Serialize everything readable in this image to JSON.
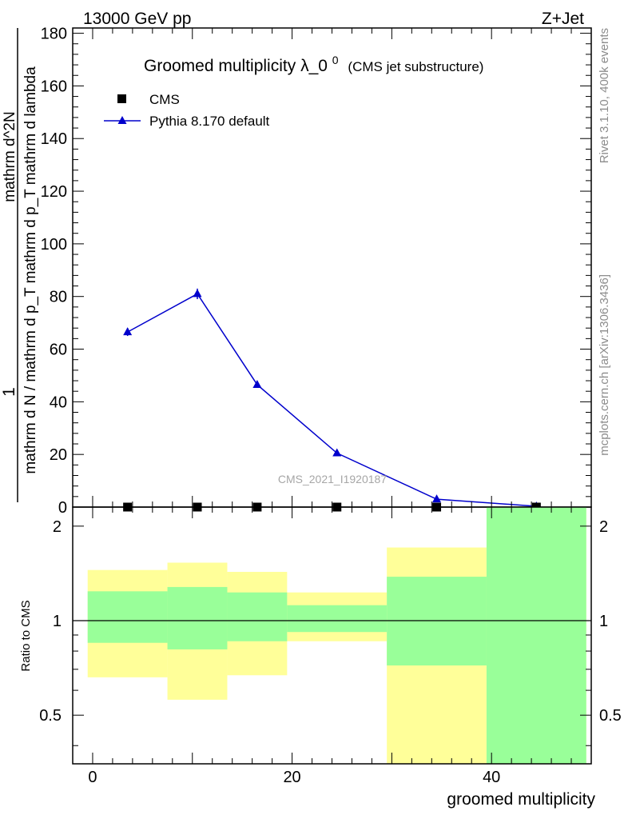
{
  "header": {
    "left": "13000 GeV pp",
    "right": "Z+Jet"
  },
  "side_labels": {
    "top": "Rivet 3.1.10,  400k events",
    "bottom": "mcplots.cern.ch [arXiv:1306.3436]"
  },
  "watermark": "CMS_2021_I1920187",
  "colors": {
    "mc": "#0000cc",
    "band_inner": "#99ff99",
    "band_outer": "#ffff99"
  },
  "chart_data": [
    {
      "type": "line",
      "title": "Groomed multiplicity",
      "title_symbol": "λ_0",
      "title_superscript": "0",
      "subtitle": "(CMS jet substructure)",
      "ylabel_numerator": "1",
      "ylabel_denominator": "mathrm d N / mathrm d p_T mathrm d p_T mathrm d lambda",
      "ylabel_top": "mathrm d^2N",
      "ylim": [
        0,
        182
      ],
      "xlim": [
        -2,
        50
      ],
      "yticks": [
        0,
        20,
        40,
        60,
        80,
        100,
        120,
        140,
        160,
        180
      ],
      "legend": [
        {
          "label": "CMS",
          "marker": "square",
          "color": "#000000"
        },
        {
          "label": "Pythia 8.170 default",
          "marker": "triangle",
          "color": "#0000cc"
        }
      ],
      "legend_position": "top-left",
      "series": [
        {
          "name": "CMS",
          "x": [
            3.5,
            10.5,
            16.5,
            24.5,
            34.5,
            44.5
          ],
          "y": [
            0.0,
            0.0,
            0.0,
            0.0,
            0.0,
            0.0
          ]
        },
        {
          "name": "Pythia 8.170 default",
          "x": [
            3.5,
            10.5,
            16.5,
            24.5,
            34.5,
            44.5
          ],
          "y": [
            66.5,
            81.0,
            46.5,
            20.5,
            3.0,
            0.3
          ],
          "yerr": [
            1.5,
            2.0,
            1.2,
            0.6,
            0.3,
            0.1
          ]
        }
      ]
    },
    {
      "type": "area",
      "ylabel": "Ratio to CMS",
      "xlabel": "groomed multiplicity",
      "ylim": [
        0.35,
        2.3
      ],
      "xlim": [
        -2,
        50
      ],
      "yscale": "log",
      "yticks": [
        0.5,
        1,
        2
      ],
      "ytick_labels": [
        "0.5",
        "1",
        "2"
      ],
      "xticks": [
        0,
        20,
        40
      ],
      "xtick_labels": [
        "0",
        "20",
        "40"
      ],
      "reference_line": 1,
      "bins": [
        {
          "xlo": -0.5,
          "xhi": 7.5,
          "inner": [
            0.85,
            1.24
          ],
          "outer": [
            0.66,
            1.45
          ]
        },
        {
          "xlo": 7.5,
          "xhi": 13.5,
          "inner": [
            0.81,
            1.28
          ],
          "outer": [
            0.56,
            1.53
          ]
        },
        {
          "xlo": 13.5,
          "xhi": 19.5,
          "inner": [
            0.86,
            1.23
          ],
          "outer": [
            0.67,
            1.43
          ]
        },
        {
          "xlo": 19.5,
          "xhi": 29.5,
          "inner": [
            0.92,
            1.12
          ],
          "outer": [
            0.86,
            1.23
          ]
        },
        {
          "xlo": 29.5,
          "xhi": 39.5,
          "inner": [
            0.72,
            1.38
          ],
          "outer": [
            0.35,
            1.71
          ]
        },
        {
          "xlo": 39.5,
          "xhi": 49.5,
          "inner": [
            0.35,
            2.3
          ],
          "outer": [
            0.35,
            2.3
          ]
        }
      ]
    }
  ]
}
